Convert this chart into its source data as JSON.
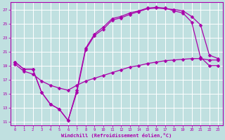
{
  "xlabel": "Windchill (Refroidissement éolien,°C)",
  "bg_color": "#c0e0e0",
  "line_color": "#aa00aa",
  "grid_color": "#ffffff",
  "xlim": [
    -0.5,
    23.5
  ],
  "ylim": [
    10.5,
    28.0
  ],
  "xticks": [
    0,
    1,
    2,
    3,
    4,
    5,
    6,
    7,
    8,
    9,
    10,
    11,
    12,
    13,
    14,
    15,
    16,
    17,
    18,
    19,
    20,
    21,
    22,
    23
  ],
  "yticks": [
    11,
    13,
    15,
    17,
    19,
    21,
    23,
    25,
    27
  ],
  "line1_x": [
    0,
    1,
    2,
    3,
    4,
    5,
    6,
    7,
    8,
    9,
    10,
    11,
    12,
    13,
    14,
    15,
    16,
    17,
    18,
    19,
    20,
    21,
    22,
    23
  ],
  "line1_y": [
    19.5,
    18.5,
    18.5,
    15.2,
    13.5,
    12.8,
    11.2,
    15.2,
    21.3,
    23.3,
    24.2,
    25.5,
    25.8,
    26.3,
    26.7,
    27.1,
    27.2,
    27.1,
    27.0,
    26.8,
    26.0,
    24.8,
    20.5,
    20.0
  ],
  "line2_x": [
    0,
    1,
    2,
    3,
    4,
    5,
    6,
    7,
    8,
    9,
    10,
    11,
    12,
    13,
    14,
    15,
    16,
    17,
    18,
    19,
    20,
    21,
    22,
    23
  ],
  "line2_y": [
    19.5,
    18.5,
    18.5,
    15.2,
    13.5,
    12.8,
    11.2,
    15.5,
    21.5,
    23.5,
    24.5,
    25.7,
    26.0,
    26.5,
    26.8,
    27.2,
    27.3,
    27.2,
    26.8,
    26.5,
    25.2,
    20.2,
    19.0,
    19.0
  ],
  "line3_x": [
    0,
    1,
    2,
    3,
    4,
    5,
    6,
    7,
    8,
    9,
    10,
    11,
    12,
    13,
    14,
    15,
    16,
    17,
    18,
    19,
    20,
    21,
    22,
    23
  ],
  "line3_y": [
    19.2,
    18.2,
    17.8,
    16.8,
    16.2,
    15.8,
    15.5,
    16.2,
    16.8,
    17.2,
    17.6,
    18.0,
    18.4,
    18.8,
    19.0,
    19.3,
    19.5,
    19.7,
    19.8,
    19.9,
    20.0,
    20.0,
    19.8,
    19.8
  ]
}
